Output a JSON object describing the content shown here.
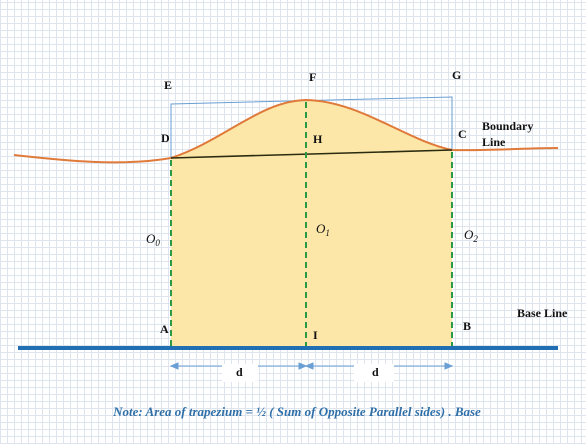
{
  "points": {
    "E": "E",
    "F": "F",
    "G": "G",
    "D": "D",
    "H": "H",
    "C": "C",
    "A": "A",
    "I": "I",
    "B": "B"
  },
  "offsets": {
    "o0_main": "O",
    "o0_sub": "0",
    "o1_main": "O",
    "o1_sub": "1",
    "o2_main": "O",
    "o2_sub": "2"
  },
  "labels": {
    "boundary_line_1": "Boundary",
    "boundary_line_2": "Line",
    "base_line": "Base Line"
  },
  "dimensions": {
    "left_d": "d",
    "right_d": "d"
  },
  "note": "Note: Area of trapezium = ½ ( Sum of Opposite Parallel sides) . Base",
  "colors": {
    "fill": "#fce7a8",
    "curve": "#e07a3a",
    "base": "#1f6fb2",
    "dashed": "#2c9a45",
    "rect": "#6a9fd4",
    "chord": "#2b2b10",
    "arrow": "#6a9fd4",
    "note": "#2f6fa8"
  }
}
